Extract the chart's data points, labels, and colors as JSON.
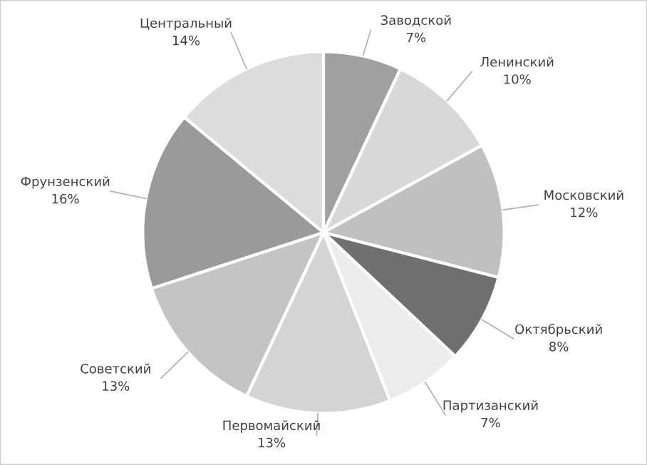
{
  "chart_data": {
    "type": "pie",
    "categories": [
      "Заводской",
      "Ленинский",
      "Московский",
      "Октябрьский",
      "Партизанский",
      "Первомайский",
      "Советский",
      "Фрунзенский",
      "Центральный"
    ],
    "values": [
      7,
      10,
      12,
      8,
      7,
      13,
      13,
      16,
      14
    ],
    "value_labels": [
      "7%",
      "10%",
      "12%",
      "8%",
      "7%",
      "13%",
      "13%",
      "16%",
      "14%"
    ],
    "colors": [
      "#a0a0a0",
      "#d8d8d8",
      "#c0c0c0",
      "#707070",
      "#ececec",
      "#d4d4d4",
      "#c4c4c4",
      "#9a9a9a",
      "#dcdcdc"
    ],
    "legend": false
  }
}
